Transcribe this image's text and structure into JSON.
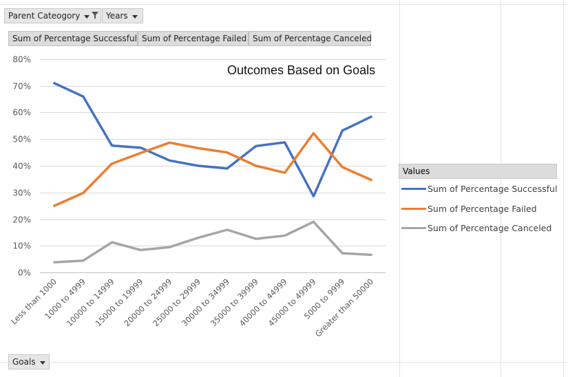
{
  "filters": {
    "parent_category": "Parent Cateogory",
    "years": "Years",
    "goals": "Goals"
  },
  "value_headers": [
    "Sum of Percentage Successful",
    "Sum of Percentage Failed",
    "Sum of Percentage Canceled"
  ],
  "legend": {
    "title": "Values"
  },
  "colors": {
    "successful": "#4472c4",
    "failed": "#ed7d31",
    "canceled": "#a5a5a5"
  },
  "chart_data": {
    "type": "line",
    "title": "Outcomes Based on Goals",
    "xlabel": "",
    "ylabel": "",
    "ylim": [
      0,
      0.8
    ],
    "yticks": [
      "0%",
      "10%",
      "20%",
      "30%",
      "40%",
      "50%",
      "60%",
      "70%",
      "80%"
    ],
    "grid": true,
    "legend_position": "right",
    "categories": [
      "Less than 1000",
      "1000 to 4999",
      "10000 to 14999",
      "15000 to 19999",
      "20000 to 24999",
      "25000 to 29999",
      "30000 to 34999",
      "35000 to 39999",
      "40000 to 44999",
      "45000 to 49999",
      "5000 to 9999",
      "Greater than 50000"
    ],
    "series": [
      {
        "name": "Sum of Percentage Successful",
        "color": "#4472c4",
        "values": [
          0.71,
          0.66,
          0.476,
          0.468,
          0.42,
          0.4,
          0.39,
          0.474,
          0.488,
          0.286,
          0.532,
          0.584
        ]
      },
      {
        "name": "Sum of Percentage Failed",
        "color": "#ed7d31",
        "values": [
          0.25,
          0.298,
          0.408,
          0.448,
          0.487,
          0.466,
          0.45,
          0.4,
          0.374,
          0.522,
          0.395,
          0.347
        ]
      },
      {
        "name": "Sum of Percentage Canceled",
        "color": "#a5a5a5",
        "values": [
          0.038,
          0.044,
          0.113,
          0.084,
          0.095,
          0.13,
          0.16,
          0.126,
          0.138,
          0.19,
          0.072,
          0.066
        ]
      }
    ]
  }
}
